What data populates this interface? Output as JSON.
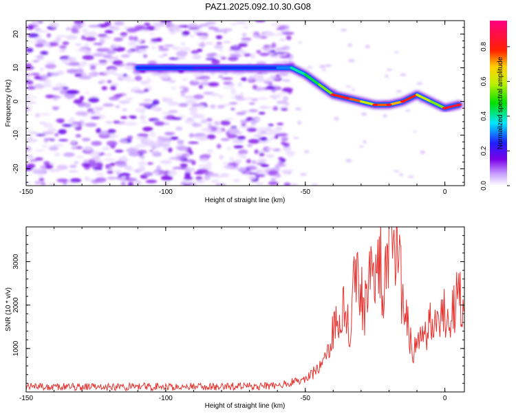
{
  "figure": {
    "title": "PAZ1.2025.092.10.30.G08"
  },
  "chart_data": [
    {
      "type": "heatmap",
      "title": "PAZ1.2025.092.10.30.G08",
      "xlabel": "Height of straight line (km)",
      "ylabel": "Frequency (Hz)",
      "xlim": [
        -150,
        7
      ],
      "ylim": [
        -25,
        24
      ],
      "xticks": [
        "-150",
        "-100",
        "-50",
        "0"
      ],
      "yticks": [
        "-20",
        "-10",
        "0",
        "10",
        "20"
      ],
      "colorbar": {
        "label": "Normalized spectral amplitude",
        "range": [
          0.0,
          0.95
        ],
        "ticks": [
          "0.0",
          "0.2",
          "0.4",
          "0.6",
          "0.8"
        ],
        "colormap": "rainbow (violet → blue → cyan → green → yellow → red → magenta)"
      },
      "ridge": {
        "description": "frequency of maximum spectral amplitude vs height",
        "x": [
          -110,
          -100,
          -90,
          -80,
          -70,
          -60,
          -55,
          -50,
          -45,
          -40,
          -35,
          -30,
          -25,
          -20,
          -15,
          -10,
          -5,
          0,
          5
        ],
        "freq": [
          10,
          10,
          10,
          10,
          10,
          10,
          10,
          8,
          5,
          2,
          1,
          0,
          -1,
          -1,
          0,
          2,
          0,
          -2,
          -1
        ],
        "amplitude": [
          0.25,
          0.25,
          0.2,
          0.25,
          0.25,
          0.3,
          0.4,
          0.45,
          0.55,
          0.8,
          0.75,
          0.6,
          0.75,
          0.7,
          0.8,
          0.6,
          0.55,
          0.85,
          0.8
        ]
      },
      "noise_region": [
        -150,
        -55
      ]
    },
    {
      "type": "line",
      "xlabel": "Height of straight line (km)",
      "ylabel": "SNR (10 * v/v)",
      "xlim": [
        -150,
        7
      ],
      "ylim": [
        0,
        3800
      ],
      "xticks": [
        "-150",
        "-100",
        "-50",
        "0"
      ],
      "yticks": [
        "1000",
        "2000",
        "3000"
      ],
      "color": "#e8302c",
      "x": [
        -150,
        -130,
        -110,
        -90,
        -70,
        -60,
        -55,
        -50,
        -47,
        -45,
        -43,
        -40,
        -38,
        -36,
        -34,
        -33,
        -32,
        -31,
        -30,
        -29,
        -28,
        -27,
        -26,
        -25,
        -24,
        -23,
        -22,
        -21,
        -20,
        -19,
        -18,
        -17,
        -16,
        -15,
        -14,
        -13,
        -12,
        -10,
        -8,
        -6,
        -4,
        -2,
        0,
        2,
        4,
        6,
        7
      ],
      "y": [
        120,
        110,
        120,
        120,
        130,
        150,
        220,
        300,
        450,
        600,
        750,
        1400,
        1700,
        2200,
        1200,
        2800,
        3000,
        2400,
        2500,
        1800,
        2300,
        2700,
        2600,
        3100,
        2800,
        3000,
        2000,
        2700,
        3200,
        3500,
        3300,
        3800,
        2600,
        2200,
        1800,
        1600,
        1000,
        950,
        1300,
        1500,
        1600,
        1800,
        1850,
        1900,
        2050,
        2100,
        2200
      ]
    }
  ]
}
